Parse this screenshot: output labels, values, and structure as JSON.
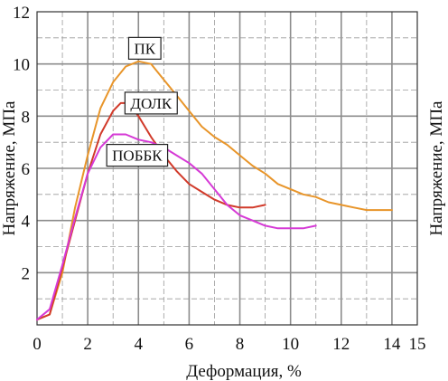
{
  "chart_data": {
    "type": "line",
    "title": "",
    "xlabel": "Деформация, %",
    "ylabel": "Напряжение, МПа",
    "ylabel_right": "Напряжение, МПа",
    "xlim": [
      0,
      15
    ],
    "ylim": [
      0,
      12
    ],
    "x_ticks": [
      "0",
      "2",
      "4",
      "6",
      "8",
      "10",
      "12",
      "14",
      "15"
    ],
    "y_ticks": [
      "2",
      "4",
      "6",
      "8",
      "10",
      "12"
    ],
    "grid": true,
    "legend": "inline labels",
    "series": [
      {
        "name": "ПК",
        "color": "#e8952a",
        "label_at": [
          4.25,
          10.6
        ],
        "points": [
          [
            0,
            0.2
          ],
          [
            0.5,
            0.4
          ],
          [
            1,
            2
          ],
          [
            1.5,
            4.5
          ],
          [
            2,
            6.5
          ],
          [
            2.5,
            8.3
          ],
          [
            3,
            9.3
          ],
          [
            3.5,
            9.9
          ],
          [
            4,
            10.1
          ],
          [
            4.5,
            10
          ],
          [
            5,
            9.4
          ],
          [
            5.5,
            8.8
          ],
          [
            6,
            8.2
          ],
          [
            6.5,
            7.6
          ],
          [
            7,
            7.2
          ],
          [
            7.5,
            6.9
          ],
          [
            8,
            6.5
          ],
          [
            8.5,
            6.1
          ],
          [
            9,
            5.8
          ],
          [
            9.5,
            5.4
          ],
          [
            10,
            5.2
          ],
          [
            10.5,
            5
          ],
          [
            11,
            4.9
          ],
          [
            11.5,
            4.7
          ],
          [
            12,
            4.6
          ],
          [
            12.5,
            4.5
          ],
          [
            13,
            4.4
          ],
          [
            13.5,
            4.4
          ],
          [
            14,
            4.4
          ]
        ]
      },
      {
        "name": "ДОЛК",
        "color": "#d13a2a",
        "label_at": [
          4.5,
          8.5
        ],
        "points": [
          [
            0,
            0.2
          ],
          [
            0.5,
            0.4
          ],
          [
            1,
            2.2
          ],
          [
            1.5,
            4
          ],
          [
            2,
            5.8
          ],
          [
            2.5,
            7.3
          ],
          [
            3,
            8.2
          ],
          [
            3.3,
            8.5
          ],
          [
            3.6,
            8.5
          ],
          [
            4,
            8
          ],
          [
            4.5,
            7.2
          ],
          [
            5,
            6.5
          ],
          [
            5.5,
            5.9
          ],
          [
            6,
            5.4
          ],
          [
            6.5,
            5.1
          ],
          [
            7,
            4.8
          ],
          [
            7.5,
            4.6
          ],
          [
            8,
            4.5
          ],
          [
            8.5,
            4.5
          ],
          [
            9,
            4.6
          ]
        ]
      },
      {
        "name": "ПОББК",
        "color": "#d63ad6",
        "label_at": [
          3.95,
          6.5
        ],
        "points": [
          [
            0,
            0.2
          ],
          [
            0.5,
            0.6
          ],
          [
            1,
            2.3
          ],
          [
            1.5,
            4.1
          ],
          [
            2,
            5.8
          ],
          [
            2.5,
            6.8
          ],
          [
            3,
            7.3
          ],
          [
            3.5,
            7.3
          ],
          [
            4,
            7.1
          ],
          [
            4.5,
            7
          ],
          [
            5,
            6.8
          ],
          [
            5.5,
            6.5
          ],
          [
            6,
            6.2
          ],
          [
            6.5,
            5.8
          ],
          [
            7,
            5.2
          ],
          [
            7.5,
            4.6
          ],
          [
            8,
            4.2
          ],
          [
            8.5,
            4
          ],
          [
            9,
            3.8
          ],
          [
            9.5,
            3.7
          ],
          [
            10,
            3.7
          ],
          [
            10.5,
            3.7
          ],
          [
            11,
            3.8
          ]
        ]
      }
    ]
  }
}
